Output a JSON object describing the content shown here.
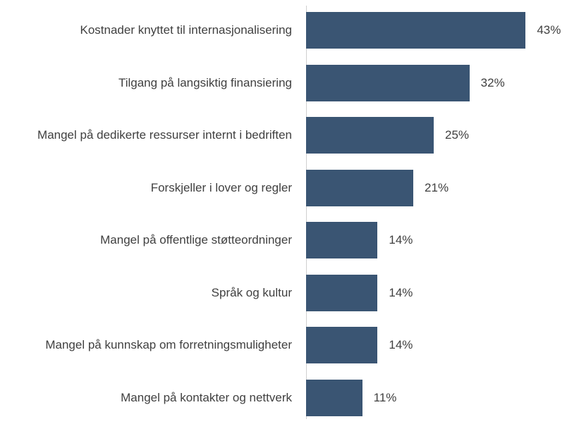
{
  "chart_data": {
    "type": "bar",
    "orientation": "horizontal",
    "categories": [
      "Kostnader knyttet til internasjonalisering",
      "Tilgang på langsiktig finansiering",
      "Mangel på dedikerte ressurser internt i bedriften",
      "Forskjeller i lover og regler",
      "Mangel på offentlige støtteordninger",
      "Språk og kultur",
      "Mangel på kunnskap om forretningsmuligheter",
      "Mangel på kontakter og nettverk"
    ],
    "values": [
      43,
      32,
      25,
      21,
      14,
      14,
      14,
      11
    ],
    "value_labels": [
      "43%",
      "32%",
      "25%",
      "21%",
      "14%",
      "14%",
      "14%",
      "11%"
    ],
    "color": "#3a5573"
  }
}
